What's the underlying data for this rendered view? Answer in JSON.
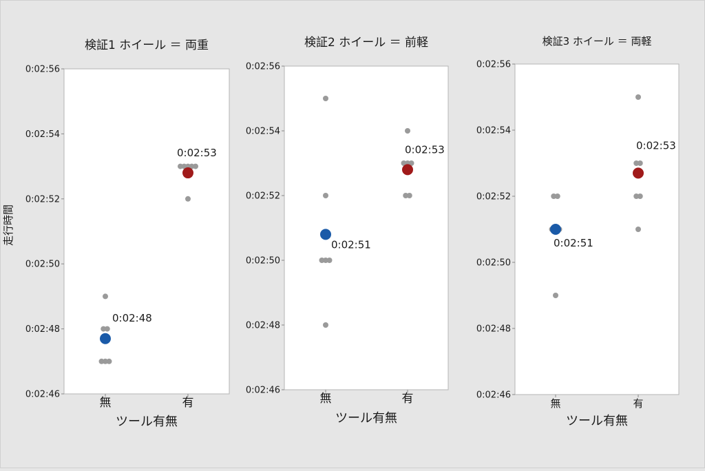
{
  "figure": {
    "ylabel": "走行時間",
    "background": "#e6e6e6",
    "panel_background": "#ffffff",
    "point_color": "#9a9a9a",
    "mean_colors": {
      "無": "#1a5aa8",
      "有": "#a01a1a"
    }
  },
  "chart_data": [
    {
      "type": "scatter",
      "title": "検証1 ホイール ＝ 両重",
      "xlabel": "ツール有無",
      "ylabel": "走行時間",
      "categories": [
        "無",
        "有"
      ],
      "y_unit": "seconds after 0:02:00",
      "ylim": [
        46,
        56
      ],
      "yticks": [
        "0:02:46",
        "0:02:48",
        "0:02:50",
        "0:02:52",
        "0:02:54",
        "0:02:56"
      ],
      "points": {
        "無": [
          47,
          47,
          47,
          48,
          48,
          49
        ],
        "有": [
          52,
          53,
          53,
          53,
          53,
          53
        ]
      },
      "means": {
        "無": 47.7,
        "有": 52.8
      },
      "mean_labels": {
        "無": "0:02:48",
        "有": "0:02:53"
      },
      "grid": false
    },
    {
      "type": "scatter",
      "title": "検証2 ホイール ＝ 前軽",
      "xlabel": "ツール有無",
      "ylabel": "",
      "categories": [
        "無",
        "有"
      ],
      "y_unit": "seconds after 0:02:00",
      "ylim": [
        46,
        56
      ],
      "yticks": [
        "0:02:46",
        "0:02:48",
        "0:02:50",
        "0:02:52",
        "0:02:54",
        "0:02:56"
      ],
      "points": {
        "無": [
          48,
          50,
          50,
          50,
          52,
          55
        ],
        "有": [
          52,
          52,
          53,
          53,
          53,
          54
        ]
      },
      "means": {
        "無": 50.8,
        "有": 52.8
      },
      "mean_labels": {
        "無": "0:02:51",
        "有": "0:02:53"
      },
      "grid": false
    },
    {
      "type": "scatter",
      "title": "検証3 ホイール ＝ 両軽",
      "xlabel": "ツール有無",
      "ylabel": "",
      "categories": [
        "無",
        "有"
      ],
      "y_unit": "seconds after 0:02:00",
      "ylim": [
        46,
        56
      ],
      "yticks": [
        "0:02:46",
        "0:02:48",
        "0:02:50",
        "0:02:52",
        "0:02:54",
        "0:02:56"
      ],
      "points": {
        "無": [
          49,
          51,
          51,
          51,
          52,
          52
        ],
        "有": [
          51,
          52,
          52,
          53,
          53,
          55
        ]
      },
      "means": {
        "無": 51.0,
        "有": 52.7
      },
      "mean_labels": {
        "無": "0:02:51",
        "有": "0:02:53"
      },
      "grid": false
    }
  ]
}
